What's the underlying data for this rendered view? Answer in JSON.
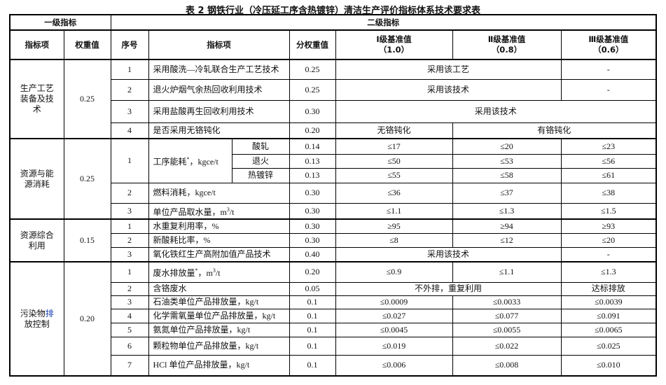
{
  "title": "表 2  钢铁行业（冷压延工序含热镀锌）清洁生产评价指标体系技术要求表",
  "header": {
    "level1": "一级指标",
    "level2": "二级指标",
    "item": "指标项",
    "weight": "权重值",
    "no": "序号",
    "indicator": "指标项",
    "sub_weight": "分权重值",
    "grade1": "Ⅰ级基准值",
    "grade1_v": "（1.0）",
    "grade2": "Ⅱ级基准值",
    "grade2_v": "（0.8）",
    "grade3": "Ⅲ级基准值",
    "grade3_v": "（0.6）"
  },
  "sections": [
    {
      "name": "生产工艺装备及技术",
      "weight": "0.25",
      "rows": [
        {
          "no": "1",
          "indicator": "采用酸洗—冷轧联合生产工艺技术",
          "w": "0.25",
          "g12": "采用该工艺",
          "g3": "-"
        },
        {
          "no": "2",
          "indicator": "退火炉烟气余热回收利用技术",
          "w": "0.25",
          "g12": "采用该技术",
          "g3": "-"
        },
        {
          "no": "3",
          "indicator": "采用盐酸再生回收利用技术",
          "w": "0.30",
          "g123": "采用该技术"
        },
        {
          "no": "4",
          "indicator": "是否采用无铬钝化",
          "w": "0.20",
          "g1": "无铬钝化",
          "g23": "有铬钝化"
        }
      ]
    },
    {
      "name": "资源与能源消耗",
      "weight": "0.25",
      "rows": [
        {
          "no": "1",
          "indicator": "工序能耗",
          "mark": "*",
          "unit": "，kgce/t",
          "subs": [
            {
              "name": "酸轧",
              "w": "0.14",
              "g1": "≤17",
              "g2": "≤20",
              "g3": "≤23"
            },
            {
              "name": "退火",
              "w": "0.13",
              "g1": "≤50",
              "g2": "≤53",
              "g3": "≤56"
            },
            {
              "name": "热镀锌",
              "w": "0.13",
              "g1": "≤55",
              "g2": "≤58",
              "g3": "≤61"
            }
          ]
        },
        {
          "no": "2",
          "indicator": "燃料消耗，kgce/t",
          "w": "0.30",
          "g1": "≤36",
          "g2": "≤37",
          "g3": "≤38"
        },
        {
          "no": "3",
          "indicator": "单位产品取水量，m",
          "sup": "3",
          "unit": "/t",
          "w": "0.30",
          "g1": "≤1.1",
          "g2": "≤1.3",
          "g3": "≤1.5"
        }
      ]
    },
    {
      "name": "资源综合利用",
      "weight": "0.15",
      "rows": [
        {
          "no": "1",
          "indicator": "水重复利用率，%",
          "w": "0.30",
          "g1": "≥95",
          "g2": "≥94",
          "g3": "≥93"
        },
        {
          "no": "2",
          "indicator": "新酸耗比率，%",
          "w": "0.30",
          "g1": "≤8",
          "g2": "≤12",
          "g3": "≤20"
        },
        {
          "no": "3",
          "indicator": "氧化铁红生产高附加值产品技术",
          "w": "0.40",
          "g12": "采用该技术",
          "g3": "-"
        }
      ]
    },
    {
      "name": "污染物排放控制",
      "name_a": "污染物",
      "name_b": "排",
      "name_c": "放控制",
      "weight": "0.20",
      "rows": [
        {
          "no": "1",
          "indicator": "废水排放量",
          "mark": "*",
          "unit": "，m",
          "sup": "3",
          "unit2": "/t",
          "w": "0.20",
          "g1": "≤0.9",
          "g2": "≤1.1",
          "g3": "≤1.3"
        },
        {
          "no": "2",
          "indicator": "含铬废水",
          "w": "0.05",
          "g12": "不外排，重复利用",
          "g3": "达标排放"
        },
        {
          "no": "3",
          "indicator": "石油类单位产品排放量，kg/t",
          "w": "0.1",
          "g1": "≤0.0009",
          "g2": "≤0.0033",
          "g3": "≤0.0039"
        },
        {
          "no": "4",
          "indicator": "化学需氧量单位产品排放量，kg/t",
          "w": "0.1",
          "g1": "≤0.027",
          "g2": "≤0.077",
          "g3": "≤0.091"
        },
        {
          "no": "5",
          "indicator": "氨氮单位产品排放量，kg/t",
          "w": "0.1",
          "g1": "≤0.0045",
          "g2": "≤0.0055",
          "g3": "≤0.0065"
        },
        {
          "no": "6",
          "indicator": "颗粒物单位产品排放量，kg/t",
          "w": "0.1",
          "g1": "≤0.019",
          "g2": "≤0.022",
          "g3": "≤0.025"
        },
        {
          "no": "7",
          "indicator": "HCl 单位产品排放量，kg/t",
          "w": "0.1",
          "g1": "≤0.006",
          "g2": "≤0.008",
          "g3": "≤0.010"
        }
      ]
    }
  ]
}
